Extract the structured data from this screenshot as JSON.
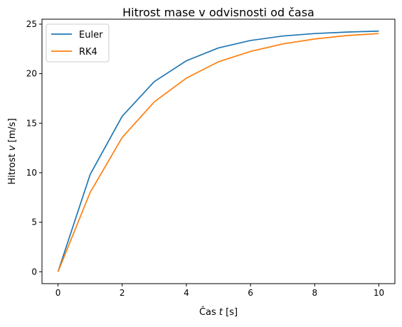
{
  "chart_data": {
    "type": "line",
    "title": "Hitrost mase v odvisnosti od časa",
    "xlabel": {
      "prefix": "Čas ",
      "var": "t",
      "suffix": " [s]"
    },
    "ylabel": {
      "prefix": "Hitrost ",
      "var": "v",
      "suffix": " [m/s]"
    },
    "x": [
      0,
      1,
      2,
      3,
      4,
      5,
      6,
      7,
      8,
      9,
      10
    ],
    "xlim": [
      -0.5,
      10.5
    ],
    "ylim": [
      -1.2,
      25.5
    ],
    "xticks": [
      0,
      2,
      4,
      6,
      8,
      10
    ],
    "yticks": [
      0,
      5,
      10,
      15,
      20,
      25
    ],
    "grid": false,
    "legend_position": "top-left",
    "series": [
      {
        "name": "Euler",
        "color": "#1f77b4",
        "values": [
          0,
          9.81,
          15.7,
          19.2,
          21.3,
          22.6,
          23.35,
          23.8,
          24.05,
          24.2,
          24.3
        ]
      },
      {
        "name": "RK4",
        "color": "#ff7f0e",
        "values": [
          0,
          8.0,
          13.55,
          17.15,
          19.55,
          21.2,
          22.25,
          23.0,
          23.5,
          23.85,
          24.05
        ]
      }
    ]
  }
}
